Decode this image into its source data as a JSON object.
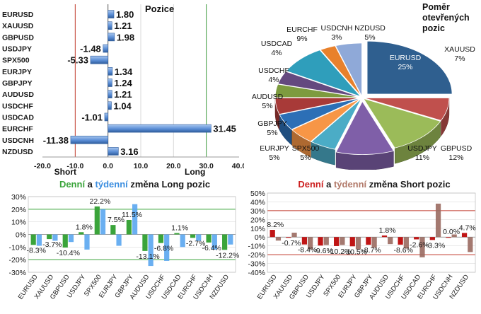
{
  "chart_data": [
    {
      "type": "bar",
      "orientation": "horizontal",
      "title": "Pozice",
      "categories": [
        "EURUSD",
        "XAUUSD",
        "GBPUSD",
        "USDJPY",
        "SPX500",
        "EURJPY",
        "GBPJPY",
        "AUDUSD",
        "USDCHF",
        "USDCAD",
        "EURCHF",
        "USDCNH",
        "NZDUSD"
      ],
      "values": [
        1.8,
        1.21,
        1.98,
        -1.48,
        -5.33,
        1.34,
        1.24,
        1.21,
        1.04,
        -1.01,
        31.45,
        -11.38,
        3.16
      ],
      "value_labels": [
        "1.80",
        "1.21",
        "1.98",
        "-1.48",
        "-5.33",
        "1.34",
        "1.24",
        "1.21",
        "1.04",
        "-1.01",
        "31.45",
        "-11.38",
        "3.16"
      ],
      "xlim": [
        -20,
        40
      ],
      "xticks": [
        "-20.0",
        "-10.0",
        "0.0",
        "10.0",
        "20.0",
        "30.0",
        "40.0"
      ],
      "annotations": [
        "Short",
        "Long"
      ],
      "bar_color": "#5b8ed6"
    },
    {
      "type": "pie",
      "title_lines": [
        "Poměr",
        "otevřených",
        "pozic"
      ],
      "slices": [
        {
          "label": "EURUSD",
          "value": 25,
          "text": "25%",
          "color": "#2f5f8f"
        },
        {
          "label": "XAUUSD",
          "value": 7,
          "text": "7%",
          "color": "#c0504d"
        },
        {
          "label": "GBPUSD",
          "value": 12,
          "text": "12%",
          "color": "#9bbb59"
        },
        {
          "label": "USDJPY",
          "value": 11,
          "text": "11%",
          "color": "#7f5fa8"
        },
        {
          "label": "SPX500",
          "value": 5,
          "text": "5%",
          "color": "#4bacc6"
        },
        {
          "label": "EURJPY",
          "value": 5,
          "text": "5%",
          "color": "#f79646"
        },
        {
          "label": "GBPJPY",
          "value": 5,
          "text": "5%",
          "color": "#2c6fb6"
        },
        {
          "label": "AUDUSD",
          "value": 5,
          "text": "5%",
          "color": "#a83a38"
        },
        {
          "label": "USDCHF",
          "value": 4,
          "text": "4%",
          "color": "#7d9b3f"
        },
        {
          "label": "USDCAD",
          "value": 4,
          "text": "4%",
          "color": "#64497f"
        },
        {
          "label": "EURCHF",
          "value": 9,
          "text": "9%",
          "color": "#2f9ebb"
        },
        {
          "label": "USDCNH",
          "value": 3,
          "text": "3%",
          "color": "#e8812c"
        },
        {
          "label": "NZDUSD",
          "value": 5,
          "text": "5%",
          "color": "#8fa9d8"
        }
      ]
    },
    {
      "type": "bar",
      "title_parts": [
        {
          "text": "Denní",
          "color": "#3aa43a"
        },
        {
          "text": " a ",
          "color": "#1a1a1a"
        },
        {
          "text": "týdenní",
          "color": "#3d8fe0"
        },
        {
          "text": " změna Long pozic",
          "color": "#1a1a1a"
        }
      ],
      "categories": [
        "EURUSD",
        "XAUUSD",
        "GBPUSD",
        "USDJPY",
        "SPX500",
        "EURJPY",
        "GBPJPY",
        "AUDUSD",
        "USDCHF",
        "USDCAD",
        "EURCHF",
        "USDCNH",
        "NZDUSD"
      ],
      "series": [
        {
          "name": "Denní",
          "color": "#3aa43a",
          "values": [
            -8.3,
            -3.7,
            -10.4,
            1.8,
            22.2,
            7.5,
            11.5,
            -13.1,
            -6.8,
            1.1,
            -2.7,
            -6.4,
            -12.2
          ]
        },
        {
          "name": "týdenní",
          "color": "#5aa6f0",
          "values": [
            -9,
            -5,
            -6,
            -12,
            20,
            -9,
            24,
            -25,
            -21,
            -10,
            -5,
            -12,
            -8
          ]
        }
      ],
      "value_labels": [
        "-8.3%",
        "-3.7%",
        "-10.4%",
        "1.8%",
        "22.2%",
        "7.5%",
        "11.5%",
        "-13.1%",
        "-6.8%",
        "1.1%",
        "-2.7%",
        "-6.4%",
        "-12.2%"
      ],
      "ylim": [
        -30,
        30
      ],
      "yticks": [
        "-30%",
        "-20%",
        "-10%",
        "0%",
        "10%",
        "20%",
        "30%"
      ]
    },
    {
      "type": "bar",
      "title_parts": [
        {
          "text": "Denní",
          "color": "#cc1f1f"
        },
        {
          "text": " a ",
          "color": "#1a1a1a"
        },
        {
          "text": "týdenní",
          "color": "#b27a6a"
        },
        {
          "text": " změna Short pozic",
          "color": "#1a1a1a"
        }
      ],
      "categories": [
        "EURUSD",
        "XAUUSD",
        "GBPUSD",
        "USDJPY",
        "SPX500",
        "EURJPY",
        "GBPJPY",
        "AUDUSD",
        "USDCHF",
        "USDCAD",
        "EURCHF",
        "USDCNH",
        "NZDUSD"
      ],
      "series": [
        {
          "name": "Denní",
          "color": "#c01515",
          "values": [
            8.2,
            -0.7,
            -8.4,
            -9.6,
            -10.2,
            -10.5,
            -8.7,
            1.8,
            -8.6,
            -2.6,
            -3.3,
            0.0,
            4.7
          ]
        },
        {
          "name": "týdenní",
          "color": "#9a6a60",
          "values": [
            -4,
            5,
            -14,
            -9,
            -9,
            -14,
            -12,
            -8,
            -13,
            -23,
            38,
            3,
            -17
          ]
        }
      ],
      "value_labels": [
        "8.2%",
        "-0.7%",
        "-8.4%",
        "-9.6%",
        "-10.2%",
        "-10.5%",
        "-8.7%",
        "1.8%",
        "-8.6%",
        "-2.6%",
        "-3.3%",
        "0.0%",
        "4.7%"
      ],
      "ylim": [
        -40,
        50
      ],
      "yticks": [
        "-40%",
        "-30%",
        "-20%",
        "-10%",
        "0%",
        "10%",
        "20%",
        "30%",
        "40%",
        "50%"
      ]
    }
  ]
}
